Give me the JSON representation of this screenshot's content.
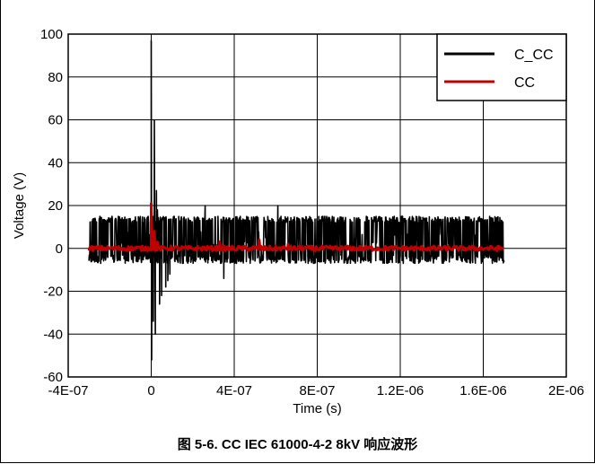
{
  "caption": "图 5-6. CC IEC 61000-4-2 8kV 响应波形",
  "chart_data": {
    "type": "line",
    "xlabel": "Time (s)",
    "ylabel": "Voltage (V)",
    "xlim": [
      -4e-07,
      2e-06
    ],
    "ylim": [
      -60,
      100
    ],
    "x_ticks": [
      "-4E-07",
      "0",
      "4E-07",
      "8E-07",
      "1.2E-06",
      "1.6E-06",
      "2E-06"
    ],
    "y_ticks": [
      "100",
      "80",
      "60",
      "40",
      "20",
      "0",
      "-20",
      "-40",
      "-60"
    ],
    "grid": true,
    "legend_position": "top-right",
    "series": [
      {
        "name": "C_CC",
        "color": "#000000",
        "baseline_band": [
          -7,
          15
        ],
        "x_range": [
          -3e-07,
          1.7e-06
        ],
        "peaks": [
          {
            "x": 0,
            "y": 97
          },
          {
            "x": 2e-09,
            "y": -52
          },
          {
            "x": 2.5e-08,
            "y": 27
          },
          {
            "x": 4e-08,
            "y": -26
          },
          {
            "x": 8e-08,
            "y": -15
          },
          {
            "x": 2.6e-07,
            "y": 20
          },
          {
            "x": 6.1e-07,
            "y": 20
          },
          {
            "x": 3.5e-07,
            "y": -14
          }
        ]
      },
      {
        "name": "CC",
        "color": "#c00000",
        "baseline": 0,
        "x_range": [
          -3e-07,
          1.7e-06
        ],
        "peaks": [
          {
            "x": 0,
            "y": 21
          },
          {
            "x": 1.5e-08,
            "y": 8
          },
          {
            "x": 3e-08,
            "y": 3
          },
          {
            "x": 3.3e-07,
            "y": 3
          },
          {
            "x": 5.2e-07,
            "y": 4
          },
          {
            "x": 6.6e-07,
            "y": 2
          }
        ]
      }
    ]
  }
}
